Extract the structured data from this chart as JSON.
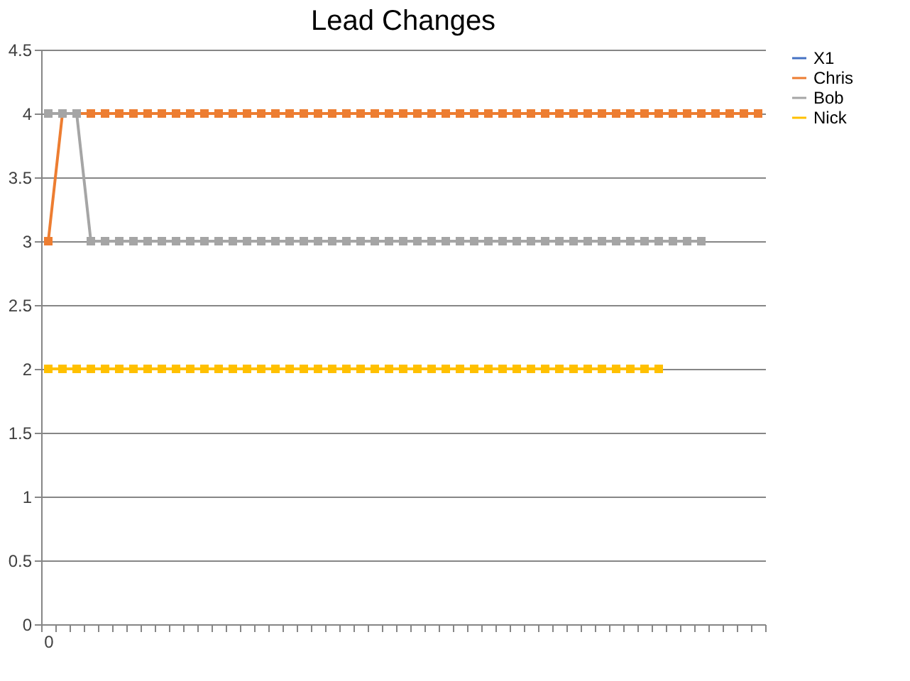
{
  "chart_data": {
    "type": "line",
    "title": "Lead Changes",
    "categories": [
      "0",
      null,
      null,
      null,
      null,
      null,
      null,
      null,
      null,
      null,
      null,
      null,
      null,
      null,
      null,
      null,
      null,
      null,
      null,
      null,
      null,
      null,
      null,
      null,
      null,
      null,
      null,
      null,
      null,
      null,
      null,
      null,
      null,
      null,
      null,
      null,
      null,
      null,
      null,
      null,
      null,
      null,
      null,
      null,
      null,
      null,
      null,
      null,
      null,
      null,
      null
    ],
    "series": [
      {
        "name": "X1",
        "color": "#4472c4",
        "values": [
          null,
          null,
          null,
          null,
          null,
          null,
          null,
          null,
          null,
          null,
          null,
          null,
          null,
          null,
          null,
          null,
          null,
          null,
          null,
          null,
          null,
          null,
          null,
          null,
          null,
          null,
          null,
          null,
          null,
          null,
          null,
          null,
          null,
          null,
          null,
          null,
          null,
          null,
          null,
          null,
          null,
          null,
          null,
          null,
          null,
          null,
          null,
          null,
          null,
          null,
          null
        ]
      },
      {
        "name": "Chris",
        "color": "#ed7d31",
        "values": [
          3,
          4,
          4,
          4,
          4,
          4,
          4,
          4,
          4,
          4,
          4,
          4,
          4,
          4,
          4,
          4,
          4,
          4,
          4,
          4,
          4,
          4,
          4,
          4,
          4,
          4,
          4,
          4,
          4,
          4,
          4,
          4,
          4,
          4,
          4,
          4,
          4,
          4,
          4,
          4,
          4,
          4,
          4,
          4,
          4,
          4,
          4,
          4,
          4,
          4,
          4
        ]
      },
      {
        "name": "Bob",
        "color": "#a5a5a5",
        "values": [
          4,
          4,
          4,
          3,
          3,
          3,
          3,
          3,
          3,
          3,
          3,
          3,
          3,
          3,
          3,
          3,
          3,
          3,
          3,
          3,
          3,
          3,
          3,
          3,
          3,
          3,
          3,
          3,
          3,
          3,
          3,
          3,
          3,
          3,
          3,
          3,
          3,
          3,
          3,
          3,
          3,
          3,
          3,
          3,
          3,
          3,
          3,
          null,
          null,
          null,
          null
        ]
      },
      {
        "name": "Nick",
        "color": "#ffc000",
        "values": [
          2,
          2,
          2,
          2,
          2,
          2,
          2,
          2,
          2,
          2,
          2,
          2,
          2,
          2,
          2,
          2,
          2,
          2,
          2,
          2,
          2,
          2,
          2,
          2,
          2,
          2,
          2,
          2,
          2,
          2,
          2,
          2,
          2,
          2,
          2,
          2,
          2,
          2,
          2,
          2,
          2,
          2,
          2,
          2,
          null,
          null,
          null,
          null,
          null,
          null,
          null
        ]
      }
    ],
    "ylim": [
      0,
      4.5
    ],
    "yticks": [
      0,
      0.5,
      1,
      1.5,
      2,
      2.5,
      3,
      3.5,
      4,
      4.5
    ],
    "grid": "y",
    "legend": "right",
    "marker": "square"
  }
}
